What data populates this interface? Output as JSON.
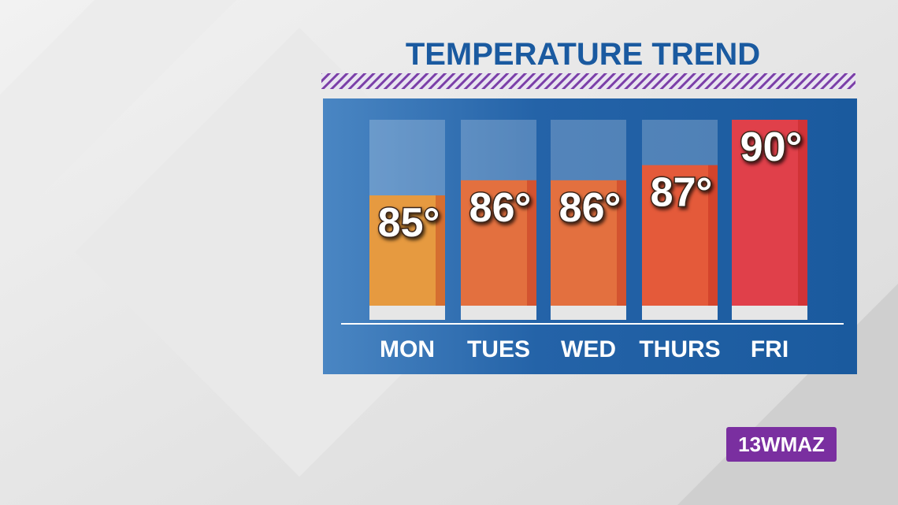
{
  "chart_data": {
    "type": "bar",
    "title": "TEMPERATURE TREND",
    "categories": [
      "MON",
      "TUES",
      "WED",
      "THURS",
      "FRI"
    ],
    "values": [
      85,
      86,
      86,
      87,
      90
    ],
    "value_labels": [
      "85°",
      "86°",
      "86°",
      "87°",
      "90°"
    ],
    "colors": [
      "#e69a40",
      "#e3703f",
      "#e3703f",
      "#e45a3a",
      "#e0404a"
    ]
  },
  "logo": "13WMAZ"
}
